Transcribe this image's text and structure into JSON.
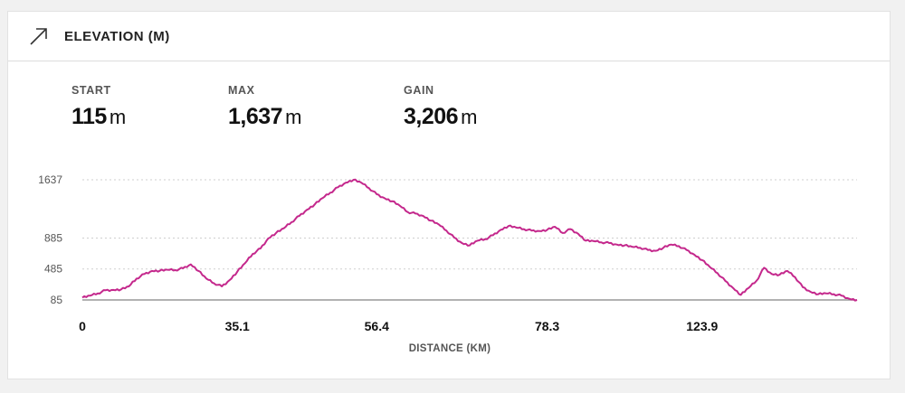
{
  "header": {
    "title": "ELEVATION (M)",
    "icon": "arrow-up-right-icon"
  },
  "stats": [
    {
      "label": "START",
      "value": "115",
      "unit": "m"
    },
    {
      "label": "MAX",
      "value": "1,637",
      "unit": "m"
    },
    {
      "label": "GAIN",
      "value": "3,206",
      "unit": "m"
    }
  ],
  "colors": {
    "line": "#c4288c",
    "grid": "#cfcfcf",
    "axis": "#999999"
  },
  "chart_data": {
    "type": "line",
    "xlabel": "DISTANCE (KM)",
    "ylabel": "",
    "y_ticks": [
      85,
      485,
      885,
      1637
    ],
    "ylim": [
      85,
      1637
    ],
    "x_tick_labels": [
      "0",
      "35.1",
      "56.4",
      "78.3",
      "123.9"
    ],
    "x_tick_positions": [
      0,
      20,
      38,
      60,
      80
    ],
    "xlim": [
      0,
      100
    ],
    "grid": true,
    "series": [
      {
        "name": "",
        "x": [
          0,
          1,
          2,
          3,
          4,
          5,
          6,
          7,
          8,
          9,
          10,
          11,
          12,
          13,
          14,
          15,
          16,
          17,
          18,
          19,
          20,
          21,
          22,
          23,
          24,
          25,
          26,
          27,
          28,
          29,
          30,
          31,
          32,
          33,
          34,
          35,
          36,
          37,
          38,
          39,
          40,
          41,
          42,
          43,
          44,
          45,
          46,
          47,
          48,
          49,
          50,
          51,
          52,
          53,
          54,
          55,
          56,
          57,
          58,
          59,
          60,
          61,
          62,
          63,
          64,
          65,
          66,
          67,
          68,
          69,
          70,
          71,
          72,
          73,
          74,
          75,
          76,
          77,
          78,
          79,
          80,
          81,
          82,
          83,
          84,
          85,
          86,
          87,
          88,
          89,
          90,
          91,
          92,
          93,
          94,
          95,
          96,
          97,
          98,
          99,
          100
        ],
        "y": [
          115,
          140,
          170,
          210,
          215,
          220,
          260,
          360,
          420,
          460,
          462,
          475,
          470,
          495,
          545,
          460,
          360,
          300,
          260,
          340,
          450,
          560,
          680,
          750,
          880,
          950,
          1010,
          1090,
          1170,
          1250,
          1320,
          1400,
          1470,
          1540,
          1600,
          1637,
          1600,
          1530,
          1450,
          1400,
          1360,
          1300,
          1220,
          1200,
          1170,
          1110,
          1060,
          980,
          890,
          820,
          790,
          850,
          870,
          920,
          990,
          1040,
          1020,
          1000,
          980,
          975,
          990,
          1030,
          950,
          1000,
          940,
          850,
          845,
          830,
          820,
          800,
          790,
          770,
          760,
          730,
          720,
          760,
          800,
          780,
          730,
          670,
          600,
          510,
          430,
          330,
          240,
          150,
          240,
          330,
          500,
          420,
          410,
          460,
          380,
          250,
          190,
          160,
          170,
          160,
          140,
          100,
          85
        ]
      }
    ]
  }
}
